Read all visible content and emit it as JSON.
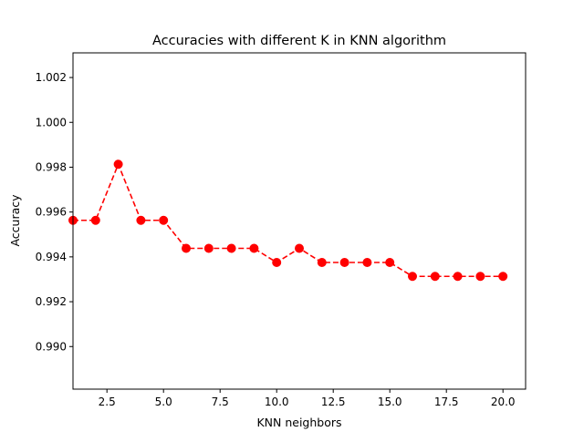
{
  "chart_data": {
    "type": "line",
    "title": "Accuracies with different K in KNN algorithm",
    "xlabel": "KNN neighbors",
    "ylabel": "Accuracy",
    "xlim": [
      1,
      21
    ],
    "ylim": [
      0.9881,
      1.0031
    ],
    "x_ticks": [
      2.5,
      5.0,
      7.5,
      10.0,
      12.5,
      15.0,
      17.5,
      20.0
    ],
    "x_tick_labels": [
      "2.5",
      "5.0",
      "7.5",
      "10.0",
      "12.5",
      "15.0",
      "17.5",
      "20.0"
    ],
    "y_ticks": [
      0.99,
      0.992,
      0.994,
      0.996,
      0.998,
      1.0,
      1.002
    ],
    "y_tick_labels": [
      "0.990",
      "0.992",
      "0.994",
      "0.996",
      "0.998",
      "1.000",
      "1.002"
    ],
    "grid": false,
    "series": [
      {
        "color": "#ff0000",
        "line_style": "dashed",
        "marker": "circle",
        "x": [
          1,
          2,
          3,
          4,
          5,
          6,
          7,
          8,
          9,
          10,
          11,
          12,
          13,
          14,
          15,
          16,
          17,
          18,
          19,
          20
        ],
        "values": [
          0.99563,
          0.99563,
          0.99813,
          0.99563,
          0.99563,
          0.99438,
          0.99438,
          0.99438,
          0.99438,
          0.99375,
          0.99438,
          0.99375,
          0.99375,
          0.99375,
          0.99375,
          0.99313,
          0.99313,
          0.99313,
          0.99313,
          0.99313
        ]
      }
    ]
  }
}
